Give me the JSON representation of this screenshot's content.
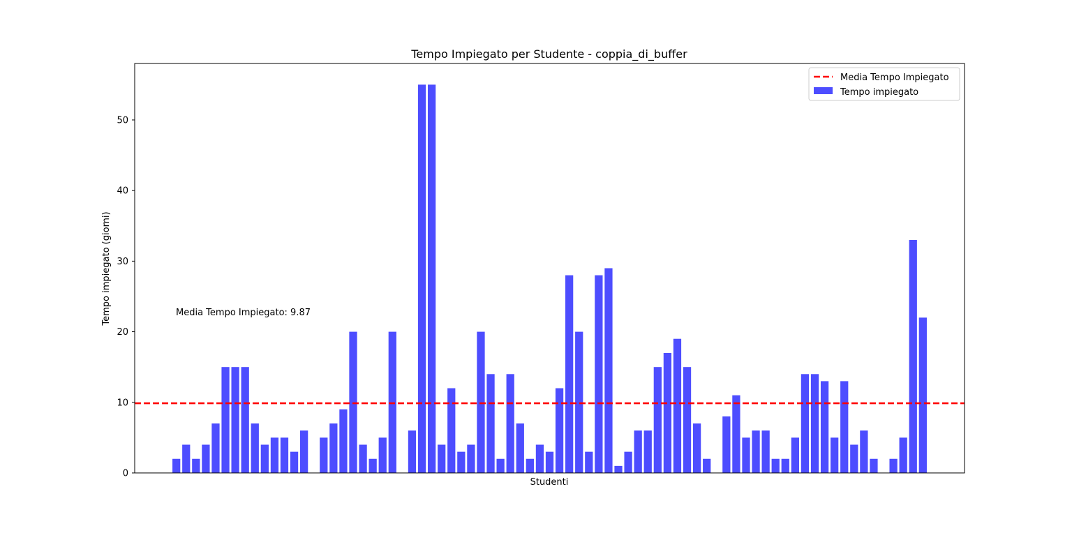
{
  "chart_data": {
    "type": "bar",
    "title": "Tempo Impiegato per Studente - coppia_di_buffer",
    "xlabel": "Studenti",
    "ylabel": "Tempo impiegato (giorni)",
    "ylim": [
      0,
      58
    ],
    "yticks": [
      0,
      10,
      20,
      30,
      40,
      50
    ],
    "grid": false,
    "legend_position": "top-right",
    "series": [
      {
        "name": "Tempo impiegato",
        "color": "#4d4dff",
        "values": [
          2,
          4,
          2,
          4,
          7,
          15,
          15,
          15,
          7,
          4,
          5,
          5,
          3,
          6,
          0,
          5,
          7,
          9,
          20,
          4,
          2,
          5,
          20,
          0,
          6,
          55,
          55,
          4,
          12,
          3,
          4,
          20,
          14,
          2,
          14,
          7,
          2,
          4,
          3,
          12,
          28,
          20,
          3,
          28,
          29,
          1,
          3,
          6,
          6,
          15,
          17,
          19,
          15,
          7,
          2,
          0,
          8,
          11,
          5,
          6,
          6,
          2,
          2,
          5,
          14,
          14,
          13,
          5,
          13,
          4,
          6,
          2,
          0,
          2,
          5,
          33,
          22
        ]
      }
    ],
    "mean_line": {
      "name": "Media Tempo Impiegato",
      "value": 9.87,
      "color": "#ff0000",
      "style": "dashed"
    },
    "annotation": "Media Tempo Impiegato: 9.87"
  }
}
